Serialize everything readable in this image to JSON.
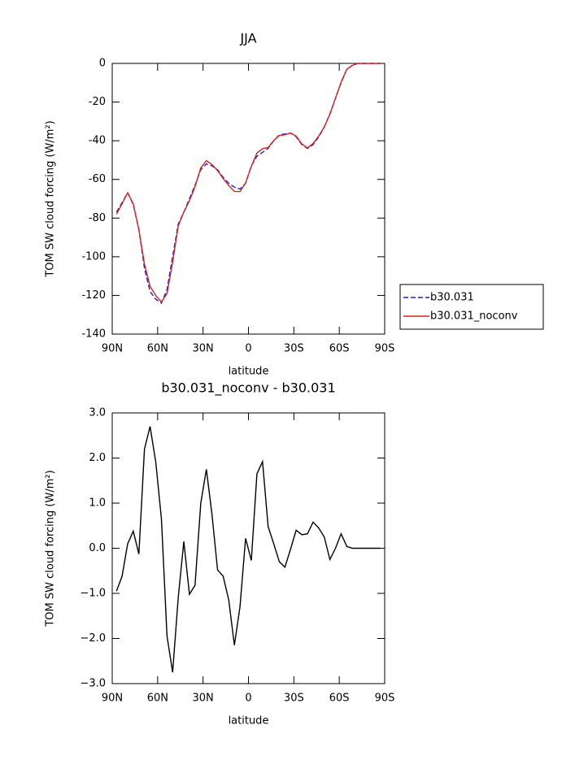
{
  "chart_data": [
    {
      "type": "line",
      "title": "JJA",
      "xlabel": "latitude",
      "ylabel": "TOM SW cloud forcing (W/m²)",
      "x": [
        87.2,
        83.5,
        79.8,
        76.1,
        72.4,
        68.7,
        65.0,
        61.2,
        57.5,
        53.8,
        50.1,
        46.4,
        42.7,
        39.0,
        35.3,
        31.5,
        27.8,
        24.1,
        20.4,
        16.7,
        13.0,
        9.3,
        5.6,
        1.9,
        -1.9,
        -5.6,
        -9.3,
        -13.0,
        -16.7,
        -20.4,
        -24.1,
        -27.8,
        -31.5,
        -35.3,
        -39.0,
        -42.7,
        -46.4,
        -50.1,
        -53.8,
        -57.5,
        -61.2,
        -65.0,
        -68.7,
        -72.4,
        -76.1,
        -79.8,
        -83.5,
        -87.2
      ],
      "series": [
        {
          "name": "b30.031",
          "color": "#1f1fd6",
          "linestyle": "dashed",
          "values": [
            -77,
            -72,
            -67,
            -73,
            -86,
            -106,
            -118,
            -122,
            -124,
            -117,
            -100,
            -83,
            -77,
            -70,
            -63,
            -55,
            -52,
            -53,
            -55,
            -59,
            -62,
            -64,
            -65,
            -62,
            -53,
            -48,
            -46,
            -44,
            -40,
            -37,
            -36.5,
            -36,
            -38,
            -42,
            -44,
            -42,
            -38,
            -33,
            -26,
            -18,
            -10,
            -3,
            -1,
            0,
            0,
            0,
            0,
            0
          ]
        },
        {
          "name": "b30.031_noconv",
          "color": "#e0201c",
          "linestyle": "solid",
          "values": [
            -78,
            -72.6,
            -66.9,
            -72.6,
            -86.1,
            -103.8,
            -115.3,
            -120.1,
            -123.4,
            -119,
            -102.8,
            -84.1,
            -76.9,
            -71,
            -63.8,
            -54,
            -50.3,
            -52.3,
            -55.5,
            -59.6,
            -63.2,
            -66.2,
            -66.3,
            -61.8,
            -53.3,
            -46.4,
            -44.1,
            -43.5,
            -39.9,
            -37.3,
            -36.9,
            -36,
            -37.6,
            -41.7,
            -43.7,
            -41.4,
            -37.6,
            -32.8,
            -26.3,
            -18,
            -9.7,
            -3,
            -1,
            0,
            0,
            0,
            0,
            0
          ]
        }
      ],
      "xlim": [
        90,
        -90
      ],
      "xticks": [
        {
          "value": 90,
          "label": "90N"
        },
        {
          "value": 60,
          "label": "60N"
        },
        {
          "value": 30,
          "label": "30N"
        },
        0,
        {
          "value": -30,
          "label": "30S"
        },
        {
          "value": -60,
          "label": "60S"
        },
        {
          "value": -90,
          "label": "90S"
        }
      ],
      "ylim": [
        -140,
        0
      ],
      "yticks": [
        -140,
        -120,
        -100,
        -80,
        -60,
        -40,
        -20,
        0
      ],
      "legend": "right"
    },
    {
      "type": "line",
      "title": "b30.031_noconv - b30.031",
      "xlabel": "latitude",
      "ylabel": "TOM SW cloud forcing (W/m²)",
      "x": [
        87.2,
        83.5,
        79.8,
        76.1,
        72.4,
        68.7,
        65.0,
        61.2,
        57.5,
        53.8,
        50.1,
        46.4,
        42.7,
        39.0,
        35.3,
        31.5,
        27.8,
        24.1,
        20.4,
        16.7,
        13.0,
        9.3,
        5.6,
        1.9,
        -1.9,
        -5.6,
        -9.3,
        -13.0,
        -16.7,
        -20.4,
        -24.1,
        -27.8,
        -31.5,
        -35.3,
        -39.0,
        -42.7,
        -46.4,
        -50.1,
        -53.8,
        -57.5,
        -61.2,
        -65.0,
        -68.7,
        -72.4,
        -76.1,
        -79.8,
        -83.5,
        -87.2
      ],
      "series": [
        {
          "color": "#000000",
          "linestyle": "solid",
          "values": [
            -0.95,
            -0.62,
            0.1,
            0.38,
            -0.13,
            2.2,
            2.7,
            1.9,
            0.65,
            -1.95,
            -2.75,
            -1.1,
            0.15,
            -1.02,
            -0.82,
            1.0,
            1.75,
            0.75,
            -0.48,
            -0.62,
            -1.15,
            -2.15,
            -1.3,
            0.22,
            -0.27,
            1.65,
            1.92,
            0.48,
            0.1,
            -0.3,
            -0.42,
            -0.02,
            0.4,
            0.3,
            0.32,
            0.58,
            0.45,
            0.25,
            -0.25,
            0.0,
            0.32,
            0.04,
            0,
            0,
            0,
            0,
            0,
            0
          ]
        }
      ],
      "xlim": [
        90,
        -90
      ],
      "xticks": [
        {
          "value": 90,
          "label": "90N"
        },
        {
          "value": 60,
          "label": "60N"
        },
        {
          "value": 30,
          "label": "30N"
        },
        0,
        {
          "value": -30,
          "label": "30S"
        },
        {
          "value": -60,
          "label": "60S"
        },
        {
          "value": -90,
          "label": "90S"
        }
      ],
      "ylim": [
        -3,
        3
      ],
      "yticks": [
        {
          "value": -3,
          "label": "−3.0"
        },
        {
          "value": -2,
          "label": "−2.0"
        },
        {
          "value": -1,
          "label": "−1.0"
        },
        {
          "value": 0,
          "label": "0.0"
        },
        {
          "value": 1,
          "label": "1.0"
        },
        {
          "value": 2,
          "label": "2.0"
        },
        {
          "value": 3,
          "label": "3.0"
        }
      ]
    }
  ]
}
